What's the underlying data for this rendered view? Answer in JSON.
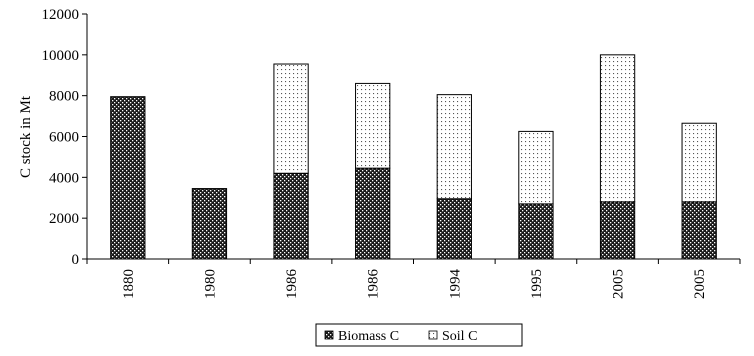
{
  "chart_data": {
    "type": "bar",
    "stacked": true,
    "categories": [
      "1880",
      "1980",
      "1986",
      "1986",
      "1994",
      "1995",
      "2005",
      "2005"
    ],
    "series": [
      {
        "name": "Biomass C",
        "pattern": "dense-dots",
        "values": [
          7950,
          3450,
          4200,
          4450,
          2950,
          2700,
          2800,
          2800
        ]
      },
      {
        "name": "Soil C",
        "pattern": "light-dots",
        "values": [
          0,
          0,
          5350,
          4150,
          5100,
          3550,
          7200,
          3850
        ]
      }
    ],
    "title": "",
    "xlabel": "",
    "ylabel": "C stock in Mt",
    "ylim": [
      0,
      12000
    ],
    "yticks": [
      0,
      2000,
      4000,
      6000,
      8000,
      10000,
      12000
    ],
    "grid": false,
    "legend": "bottom-center"
  }
}
